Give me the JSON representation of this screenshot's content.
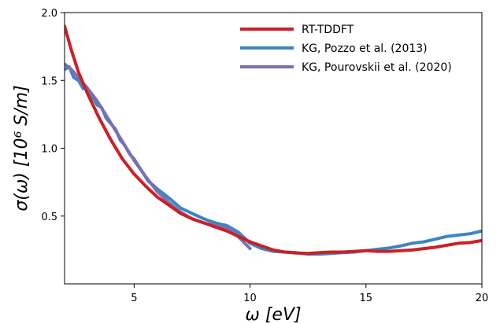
{
  "chart_data": {
    "type": "line",
    "xlabel": "ω [eV]",
    "ylabel": "σ(ω) [10⁶ S/m]",
    "xlim": [
      2,
      20
    ],
    "ylim": [
      0,
      2.0
    ],
    "xticks": [
      5,
      10,
      15,
      20
    ],
    "yticks": [
      0.5,
      1.0,
      1.5,
      2.0
    ],
    "xtick_labels": [
      "5",
      "10",
      "15",
      "20"
    ],
    "ytick_labels": [
      "0.5",
      "1.0",
      "1.5",
      "2.0"
    ],
    "grid": false,
    "legend_position": "top-right",
    "series": [
      {
        "name": "RT-TDDFT",
        "color": "#cc1f26",
        "x": [
          2.0,
          2.3,
          2.6,
          3.0,
          3.5,
          4.0,
          4.5,
          5.0,
          5.5,
          6.0,
          6.5,
          7.0,
          7.5,
          8.0,
          8.5,
          9.0,
          9.5,
          10.0,
          10.5,
          11.0,
          11.5,
          12.0,
          12.5,
          13.0,
          13.5,
          14.0,
          14.5,
          15.0,
          15.5,
          16.0,
          16.5,
          17.0,
          17.5,
          18.0,
          18.5,
          19.0,
          19.5,
          20.0
        ],
        "y": [
          1.9,
          1.72,
          1.56,
          1.4,
          1.22,
          1.06,
          0.92,
          0.81,
          0.72,
          0.64,
          0.58,
          0.52,
          0.48,
          0.45,
          0.42,
          0.39,
          0.35,
          0.31,
          0.28,
          0.25,
          0.235,
          0.228,
          0.225,
          0.23,
          0.235,
          0.235,
          0.24,
          0.245,
          0.24,
          0.24,
          0.245,
          0.25,
          0.26,
          0.27,
          0.285,
          0.3,
          0.305,
          0.32
        ]
      },
      {
        "name": "KG, Pozzo et al. (2013)",
        "color": "#3a86c0",
        "x": [
          2.0,
          2.2,
          2.4,
          2.6,
          2.8,
          3.0,
          3.2,
          3.4,
          3.6,
          3.8,
          4.0,
          4.2,
          4.4,
          4.6,
          4.8,
          5.0,
          5.3,
          5.6,
          6.0,
          6.3,
          6.6,
          7.0,
          7.5,
          8.0,
          8.5,
          9.0,
          9.5,
          10.0,
          10.5,
          11.0,
          11.5,
          12.0,
          12.5,
          13.0,
          13.5,
          14.0,
          14.5,
          15.0,
          15.5,
          16.0,
          16.5,
          17.0,
          17.5,
          18.0,
          18.5,
          19.0,
          19.5,
          20.0
        ],
        "y": [
          1.58,
          1.6,
          1.52,
          1.5,
          1.44,
          1.44,
          1.38,
          1.32,
          1.3,
          1.22,
          1.18,
          1.14,
          1.06,
          1.02,
          0.96,
          0.92,
          0.84,
          0.76,
          0.7,
          0.66,
          0.62,
          0.56,
          0.52,
          0.48,
          0.45,
          0.43,
          0.38,
          0.3,
          0.26,
          0.24,
          0.235,
          0.23,
          0.22,
          0.22,
          0.225,
          0.23,
          0.235,
          0.245,
          0.255,
          0.265,
          0.28,
          0.3,
          0.31,
          0.33,
          0.35,
          0.36,
          0.37,
          0.39
        ]
      },
      {
        "name": "KG, Pourovskii et al. (2020)",
        "color": "#7c6fb3",
        "x": [
          2.0,
          2.3,
          2.6,
          3.0,
          3.4,
          3.8,
          4.2,
          4.6,
          5.0,
          5.5,
          6.0,
          6.5,
          7.0,
          7.5,
          8.0,
          8.5,
          9.0,
          9.3,
          9.6,
          10.0
        ],
        "y": [
          1.62,
          1.58,
          1.52,
          1.44,
          1.35,
          1.24,
          1.13,
          1.02,
          0.91,
          0.79,
          0.68,
          0.6,
          0.53,
          0.48,
          0.45,
          0.43,
          0.41,
          0.38,
          0.33,
          0.26
        ]
      }
    ]
  }
}
